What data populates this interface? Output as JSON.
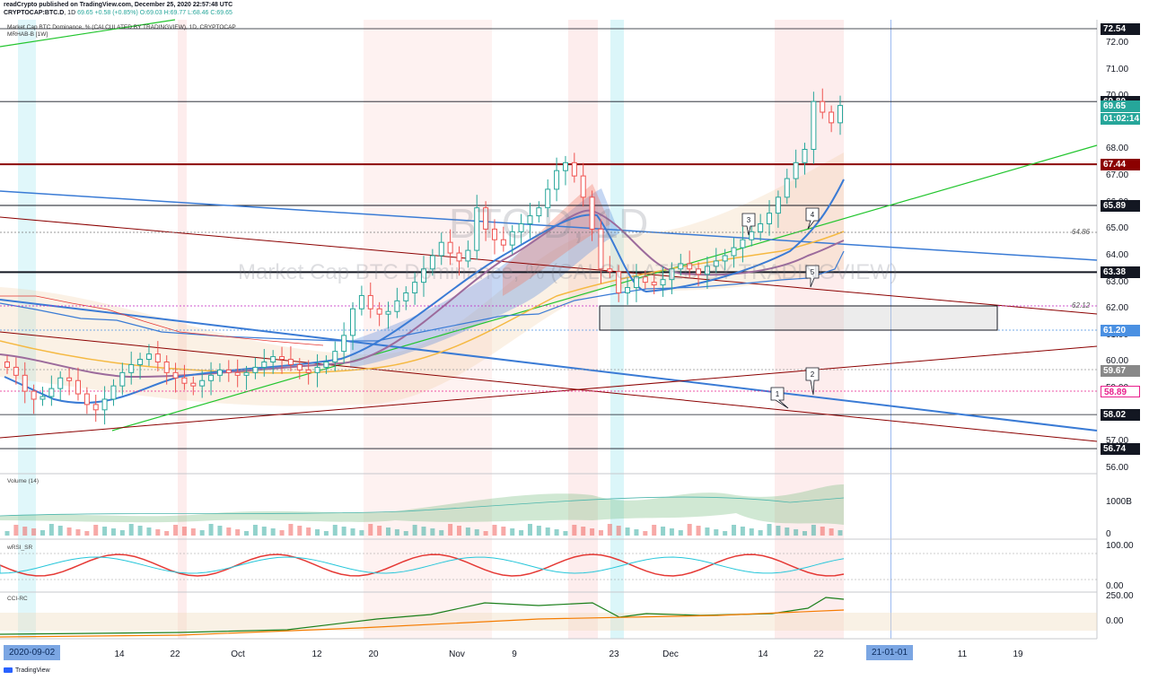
{
  "header": {
    "publisher_line": "readCrypto published on TradingView.com, December 25, 2020 22:57:48 UTC",
    "symbol": "CRYPTOCAP:BTC.D",
    "interval": "1D",
    "last": "69.65",
    "change": "+0.58 (+0.85%)",
    "ohlc": "O:69.03 H:69.77 L:68.46 C:69.65",
    "series_title": "Market Cap BTC Dominance, % (CALCULATED BY TRADINGVIEW), 1D, CRYPTOCAP",
    "indicator": "MRHAB-B [1W]"
  },
  "watermark": {
    "symbol": "BTC.D, 1D",
    "description": "Market Cap BTC Dominance, % (CALCULATED BY TRADINGVIEW)"
  },
  "price_axis": {
    "ticks": [
      "72.00",
      "71.00",
      "70.00",
      "69.00",
      "68.00",
      "67.00",
      "66.00",
      "65.00",
      "64.00",
      "63.00",
      "62.00",
      "61.00",
      "60.00",
      "59.00",
      "58.00",
      "57.00",
      "56.00"
    ],
    "min": 56,
    "max": 72.54
  },
  "badges": [
    {
      "label": "72.54",
      "value": 72.54,
      "bg": "#131722",
      "fg": "#ffffff"
    },
    {
      "label": "69.80",
      "value": 69.8,
      "bg": "#131722",
      "fg": "#ffffff"
    },
    {
      "label": "69.65",
      "value": 69.65,
      "bg": "#26a69a",
      "fg": "#ffffff"
    },
    {
      "label": "01:02:14",
      "value": 69.15,
      "bg": "#26a69a",
      "fg": "#ffffff"
    },
    {
      "label": "67.44",
      "value": 67.44,
      "bg": "#8b0000",
      "fg": "#ffffff"
    },
    {
      "label": "65.89",
      "value": 65.89,
      "bg": "#131722",
      "fg": "#ffffff"
    },
    {
      "label": "63.38",
      "value": 63.38,
      "bg": "#131722",
      "fg": "#ffffff"
    },
    {
      "label": "61.20",
      "value": 61.2,
      "bg": "#4a90e2",
      "fg": "#ffffff"
    },
    {
      "label": "59.67",
      "value": 59.67,
      "bg": "#888888",
      "fg": "#ffffff"
    },
    {
      "label": "58.89",
      "value": 58.89,
      "bg": "#ffffff",
      "fg": "#e91e8c"
    },
    {
      "label": "58.02",
      "value": 58.02,
      "bg": "#131722",
      "fg": "#ffffff"
    },
    {
      "label": "56.74",
      "value": 56.74,
      "bg": "#131722",
      "fg": "#ffffff"
    }
  ],
  "level_annotations": [
    {
      "label": "64.86",
      "value": 64.86
    },
    {
      "label": "62.12",
      "value": 62.12
    }
  ],
  "wave_labels": [
    "1",
    "2",
    "3",
    "4",
    "5"
  ],
  "panes": {
    "volume": {
      "label": "Volume (14)",
      "ticks": [
        "1000B",
        "0"
      ]
    },
    "rsi": {
      "label": "wRSI_SR",
      "ticks": [
        "100.00",
        "0.00"
      ]
    },
    "cci": {
      "label": "CCI-RC",
      "ticks": [
        "250.00",
        "0.00"
      ]
    }
  },
  "time_axis": {
    "start_badge": "2020-09-02",
    "labels": [
      "14",
      "22",
      "Oct",
      "12",
      "20",
      "Nov",
      "9",
      "23",
      "Dec",
      "14",
      "22",
      "11",
      "19"
    ],
    "end_badge": "21-01-01"
  },
  "footer": {
    "brand": "TradingView"
  },
  "colors": {
    "up": "#26a69a",
    "down": "#ef5350",
    "ha_up": "#f08a6b",
    "ha_down": "#7fbfe0",
    "trend_green": "#00c800",
    "trend_blue": "#3a7bd5",
    "trend_red": "#8b0000"
  },
  "chart_data": {
    "type": "candlestick",
    "xlabel": "",
    "ylabel": "",
    "ylim": [
      56,
      72.54
    ],
    "dates": [
      "2020-09-02",
      "2020-12-25"
    ],
    "close": [
      59.8,
      59.5,
      58.9,
      58.6,
      58.7,
      59.0,
      59.4,
      59.3,
      58.8,
      58.4,
      58.2,
      58.6,
      59.1,
      59.6,
      59.9,
      60.1,
      60.3,
      60.0,
      59.6,
      59.4,
      59.2,
      59.1,
      59.3,
      59.5,
      59.7,
      59.6,
      59.5,
      59.6,
      59.8,
      60.0,
      60.2,
      60.1,
      59.9,
      59.7,
      59.6,
      59.8,
      60.0,
      60.4,
      61.0,
      62.0,
      62.5,
      62.0,
      61.8,
      61.9,
      62.3,
      62.6,
      63.0,
      63.5,
      64.0,
      64.5,
      64.1,
      63.8,
      64.2,
      65.8,
      65.0,
      64.6,
      64.4,
      64.9,
      65.2,
      65.5,
      65.8,
      66.5,
      67.2,
      67.5,
      67.0,
      66.2,
      65.0,
      63.5,
      63.4,
      62.6,
      62.8,
      63.2,
      63.0,
      62.9,
      63.1,
      63.5,
      63.7,
      63.5,
      63.3,
      63.6,
      63.8,
      64.0,
      64.3,
      64.6,
      64.9,
      65.2,
      65.6,
      66.2,
      66.9,
      67.5,
      68.0,
      69.8,
      69.4,
      69.0,
      69.65
    ]
  }
}
